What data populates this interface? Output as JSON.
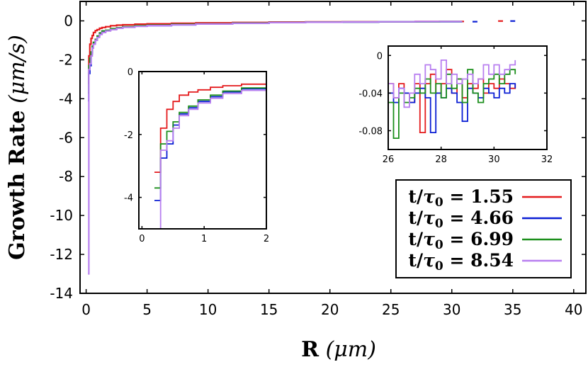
{
  "chart_data": [
    {
      "id": "main",
      "type": "line",
      "title": "",
      "xlabel_bold": "R",
      "xlabel_unit": "(μm)",
      "ylabel_bold": "Growth Rate",
      "ylabel_unit": "(μm/s)",
      "xlim": [
        -0.5,
        41
      ],
      "ylim": [
        -14,
        1
      ],
      "xticks": [
        "0",
        "5",
        "10",
        "15",
        "20",
        "25",
        "30",
        "35",
        "40"
      ],
      "yticks": [
        "0",
        "-2",
        "-4",
        "-6",
        "-8",
        "-10",
        "-12",
        "-14"
      ],
      "legend_position": "bottom-right",
      "series": [
        {
          "name": "t/τ0 = 1.55",
          "legend_lhs": "t/τ0 =",
          "legend_value": "1.55",
          "color": "#e41a1c",
          "x": [
            0.15,
            0.22,
            0.3,
            0.4,
            0.5,
            0.6,
            0.75,
            0.9,
            1.1,
            1.3,
            1.6,
            2.0,
            2.5,
            3,
            4,
            5,
            7,
            9,
            12,
            15,
            18,
            21,
            24,
            27,
            29,
            31
          ],
          "y": [
            -3.2,
            -1.8,
            -1.2,
            -0.9,
            -0.75,
            -0.6,
            -0.5,
            -0.45,
            -0.38,
            -0.34,
            -0.3,
            -0.25,
            -0.22,
            -0.2,
            -0.17,
            -0.15,
            -0.12,
            -0.1,
            -0.08,
            -0.06,
            -0.05,
            -0.045,
            -0.04,
            -0.035,
            -0.03,
            -0.03
          ],
          "fragments": [
            {
              "x": [
                33.8,
                34.2
              ],
              "y": [
                -0.01,
                -0.01
              ]
            }
          ]
        },
        {
          "name": "t/τ0 = 4.66",
          "legend_lhs": "t/τ0 =",
          "legend_value": "4.66",
          "color": "#0a1ed4",
          "x": [
            0.15,
            0.22,
            0.3,
            0.4,
            0.5,
            0.6,
            0.75,
            0.9,
            1.1,
            1.3,
            1.6,
            2.0,
            2.5,
            3,
            4,
            5,
            7,
            9,
            12,
            15,
            18,
            21,
            24,
            27,
            29,
            30.8
          ],
          "y": [
            -4.1,
            -2.7,
            -2.3,
            -1.7,
            -1.35,
            -1.15,
            -1.0,
            -0.8,
            -0.65,
            -0.55,
            -0.5,
            -0.42,
            -0.38,
            -0.32,
            -0.27,
            -0.24,
            -0.2,
            -0.16,
            -0.12,
            -0.09,
            -0.07,
            -0.06,
            -0.05,
            -0.045,
            -0.04,
            -0.035
          ],
          "fragments": [
            {
              "x": [
                31.7,
                32.1
              ],
              "y": [
                -0.04,
                -0.04
              ]
            },
            {
              "x": [
                34.8,
                35.2
              ],
              "y": [
                -0.01,
                -0.01
              ]
            }
          ]
        },
        {
          "name": "t/τ0 = 6.99",
          "legend_lhs": "t/τ0 =",
          "legend_value": "6.99",
          "color": "#1c8f1c",
          "x": [
            0.15,
            0.22,
            0.3,
            0.4,
            0.5,
            0.6,
            0.75,
            0.9,
            1.1,
            1.3,
            1.6,
            2.0,
            2.5,
            3,
            4,
            5,
            7,
            9,
            12,
            15,
            18,
            21,
            24,
            27,
            29,
            30.8
          ],
          "y": [
            -3.7,
            -2.3,
            -1.9,
            -1.6,
            -1.3,
            -1.1,
            -0.95,
            -0.78,
            -0.62,
            -0.52,
            -0.48,
            -0.4,
            -0.35,
            -0.3,
            -0.25,
            -0.22,
            -0.18,
            -0.15,
            -0.11,
            -0.08,
            -0.065,
            -0.055,
            -0.045,
            -0.04,
            -0.035,
            -0.025
          ]
        },
        {
          "name": "t/τ0 = 8.54",
          "legend_lhs": "t/τ0 =",
          "legend_value": "8.54",
          "color": "#b87ff0",
          "x": [
            0.15,
            0.22,
            0.3,
            0.4,
            0.5,
            0.6,
            0.75,
            0.9,
            1.1,
            1.3,
            1.6,
            2.0,
            2.5,
            3,
            4,
            5,
            7,
            9,
            12,
            15,
            18,
            21,
            24,
            27,
            29,
            30.8
          ],
          "y": [
            -13.0,
            -2.5,
            -2.2,
            -1.8,
            -1.4,
            -1.2,
            -1.0,
            -0.85,
            -0.7,
            -0.6,
            -0.52,
            -0.45,
            -0.38,
            -0.33,
            -0.28,
            -0.24,
            -0.2,
            -0.16,
            -0.12,
            -0.09,
            -0.07,
            -0.055,
            -0.045,
            -0.035,
            -0.03,
            -0.015
          ]
        }
      ]
    },
    {
      "id": "inset-left",
      "type": "line",
      "xlim": [
        -0.05,
        2
      ],
      "ylim": [
        -5,
        0
      ],
      "xticks": [
        "0",
        "1",
        "2"
      ],
      "yticks": [
        "0",
        "-2",
        "-4"
      ],
      "series": [
        {
          "name": "t/τ0 = 1.55",
          "color": "#e41a1c",
          "x": [
            0.2,
            0.3,
            0.4,
            0.5,
            0.6,
            0.75,
            0.9,
            1.1,
            1.3,
            1.6,
            2.0
          ],
          "y": [
            -3.2,
            -1.8,
            -1.2,
            -0.95,
            -0.75,
            -0.65,
            -0.58,
            -0.5,
            -0.45,
            -0.4,
            -0.35
          ]
        },
        {
          "name": "t/τ0 = 4.66",
          "color": "#0a1ed4",
          "x": [
            0.2,
            0.3,
            0.4,
            0.5,
            0.6,
            0.75,
            0.9,
            1.1,
            1.3,
            1.6,
            2.0
          ],
          "y": [
            -4.1,
            -2.75,
            -2.3,
            -1.7,
            -1.35,
            -1.15,
            -0.95,
            -0.8,
            -0.65,
            -0.55,
            -0.4
          ]
        },
        {
          "name": "t/τ0 = 6.99",
          "color": "#1c8f1c",
          "x": [
            0.2,
            0.3,
            0.4,
            0.5,
            0.6,
            0.75,
            0.9,
            1.1,
            1.3,
            1.6,
            2.0
          ],
          "y": [
            -3.7,
            -2.3,
            -1.9,
            -1.6,
            -1.3,
            -1.1,
            -0.9,
            -0.75,
            -0.62,
            -0.52,
            -0.38
          ]
        },
        {
          "name": "t/τ0 = 8.54",
          "color": "#b87ff0",
          "x": [
            0.2,
            0.3,
            0.4,
            0.5,
            0.6,
            0.75,
            0.9,
            1.1,
            1.3,
            1.6,
            2.0
          ],
          "y": [
            -5.0,
            -2.5,
            -2.2,
            -1.8,
            -1.4,
            -1.2,
            -1.0,
            -0.85,
            -0.7,
            -0.6,
            -0.45
          ]
        }
      ]
    },
    {
      "id": "inset-right",
      "type": "line",
      "xlim": [
        26,
        32
      ],
      "ylim": [
        -0.1,
        0.01
      ],
      "xticks": [
        "26",
        "28",
        "30",
        "32"
      ],
      "yticks": [
        "0",
        "-0.04",
        "-0.08"
      ],
      "series": [
        {
          "name": "t/τ0 = 1.55",
          "color": "#e41a1c",
          "x": [
            26.0,
            26.2,
            26.4,
            26.6,
            26.8,
            27.0,
            27.2,
            27.4,
            27.6,
            27.8,
            28.0,
            28.2,
            28.4,
            28.6,
            28.8,
            29.0,
            29.2,
            29.4,
            29.6,
            29.8,
            30.0,
            30.2,
            30.4,
            30.6,
            30.8
          ],
          "y": [
            -0.03,
            -0.045,
            -0.03,
            -0.04,
            -0.05,
            -0.03,
            -0.082,
            -0.03,
            -0.02,
            -0.04,
            -0.03,
            -0.015,
            -0.04,
            -0.025,
            -0.045,
            -0.03,
            -0.035,
            -0.025,
            -0.04,
            -0.03,
            -0.035,
            -0.025,
            -0.03,
            -0.035,
            -0.03
          ]
        },
        {
          "name": "t/τ0 = 4.66",
          "color": "#0a1ed4",
          "x": [
            26.0,
            26.2,
            26.4,
            26.6,
            26.8,
            27.0,
            27.2,
            27.4,
            27.6,
            27.8,
            28.0,
            28.2,
            28.4,
            28.6,
            28.8,
            29.0,
            29.2,
            29.4,
            29.6,
            29.8,
            30.0,
            30.2,
            30.4,
            30.6,
            30.8
          ],
          "y": [
            -0.04,
            -0.05,
            -0.035,
            -0.04,
            -0.05,
            -0.04,
            -0.035,
            -0.045,
            -0.082,
            -0.04,
            -0.045,
            -0.035,
            -0.04,
            -0.05,
            -0.07,
            -0.035,
            -0.04,
            -0.045,
            -0.035,
            -0.04,
            -0.045,
            -0.035,
            -0.04,
            -0.03,
            -0.035
          ]
        },
        {
          "name": "t/τ0 = 6.99",
          "color": "#1c8f1c",
          "x": [
            26.0,
            26.2,
            26.4,
            26.6,
            26.8,
            27.0,
            27.2,
            27.4,
            27.6,
            27.8,
            28.0,
            28.2,
            28.4,
            28.6,
            28.8,
            29.0,
            29.2,
            29.4,
            29.6,
            29.8,
            30.0,
            30.2,
            30.4,
            30.6,
            30.8
          ],
          "y": [
            -0.05,
            -0.088,
            -0.04,
            -0.05,
            -0.045,
            -0.035,
            -0.04,
            -0.025,
            -0.04,
            -0.03,
            -0.045,
            -0.02,
            -0.035,
            -0.025,
            -0.05,
            -0.015,
            -0.04,
            -0.05,
            -0.03,
            -0.025,
            -0.02,
            -0.03,
            -0.02,
            -0.015,
            -0.02
          ]
        },
        {
          "name": "t/τ0 = 8.54",
          "color": "#b87ff0",
          "x": [
            26.0,
            26.2,
            26.4,
            26.6,
            26.8,
            27.0,
            27.2,
            27.4,
            27.6,
            27.8,
            28.0,
            28.2,
            28.4,
            28.6,
            28.8,
            29.0,
            29.2,
            29.4,
            29.6,
            29.8,
            30.0,
            30.2,
            30.4,
            30.6,
            30.8
          ],
          "y": [
            -0.03,
            -0.045,
            -0.035,
            -0.055,
            -0.04,
            -0.02,
            -0.03,
            -0.01,
            -0.015,
            -0.025,
            -0.005,
            -0.03,
            -0.02,
            -0.03,
            -0.025,
            -0.02,
            -0.03,
            -0.025,
            -0.01,
            -0.02,
            -0.01,
            -0.02,
            -0.015,
            -0.01,
            -0.005
          ]
        }
      ]
    }
  ]
}
